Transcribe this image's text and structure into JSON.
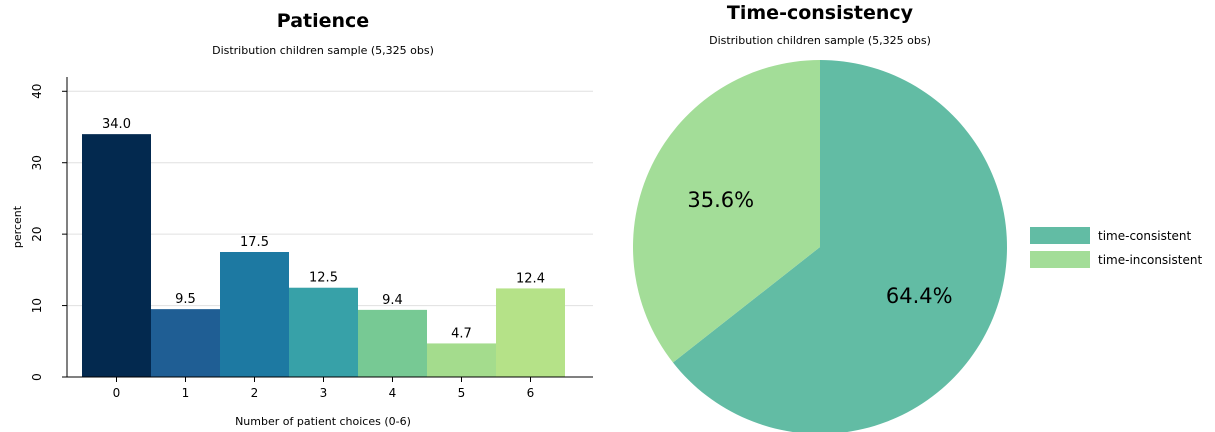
{
  "chart_data": [
    {
      "type": "bar",
      "title": "Patience",
      "subtitle": "Distribution children sample (5,325 obs)",
      "xlabel": "Number of patient choices (0-6)",
      "ylabel": "percent",
      "categories": [
        "0",
        "1",
        "2",
        "3",
        "4",
        "5",
        "6"
      ],
      "values": [
        34.0,
        9.5,
        17.5,
        12.5,
        9.4,
        4.7,
        12.4
      ],
      "value_labels": [
        "34.0",
        "9.5",
        "17.5",
        "12.5",
        "9.4",
        "4.7",
        "12.4"
      ],
      "colors": [
        "#03294f",
        "#1f5e94",
        "#1d79a2",
        "#37a1a8",
        "#77c994",
        "#a4dc8d",
        "#b5e288"
      ],
      "ylim": [
        0,
        42
      ],
      "yticks": [
        0,
        10,
        20,
        30,
        40
      ],
      "grid": true,
      "legend": "none"
    },
    {
      "type": "pie",
      "title": "Time-consistency",
      "subtitle": "Distribution children sample (5,325 obs)",
      "slices": [
        {
          "label": "time-consistent",
          "value": 64.4,
          "display": "64.4%",
          "color": "#62bca4"
        },
        {
          "label": "time-inconsistent",
          "value": 35.6,
          "display": "35.6%",
          "color": "#a3dd98"
        }
      ],
      "legend": "right"
    }
  ]
}
